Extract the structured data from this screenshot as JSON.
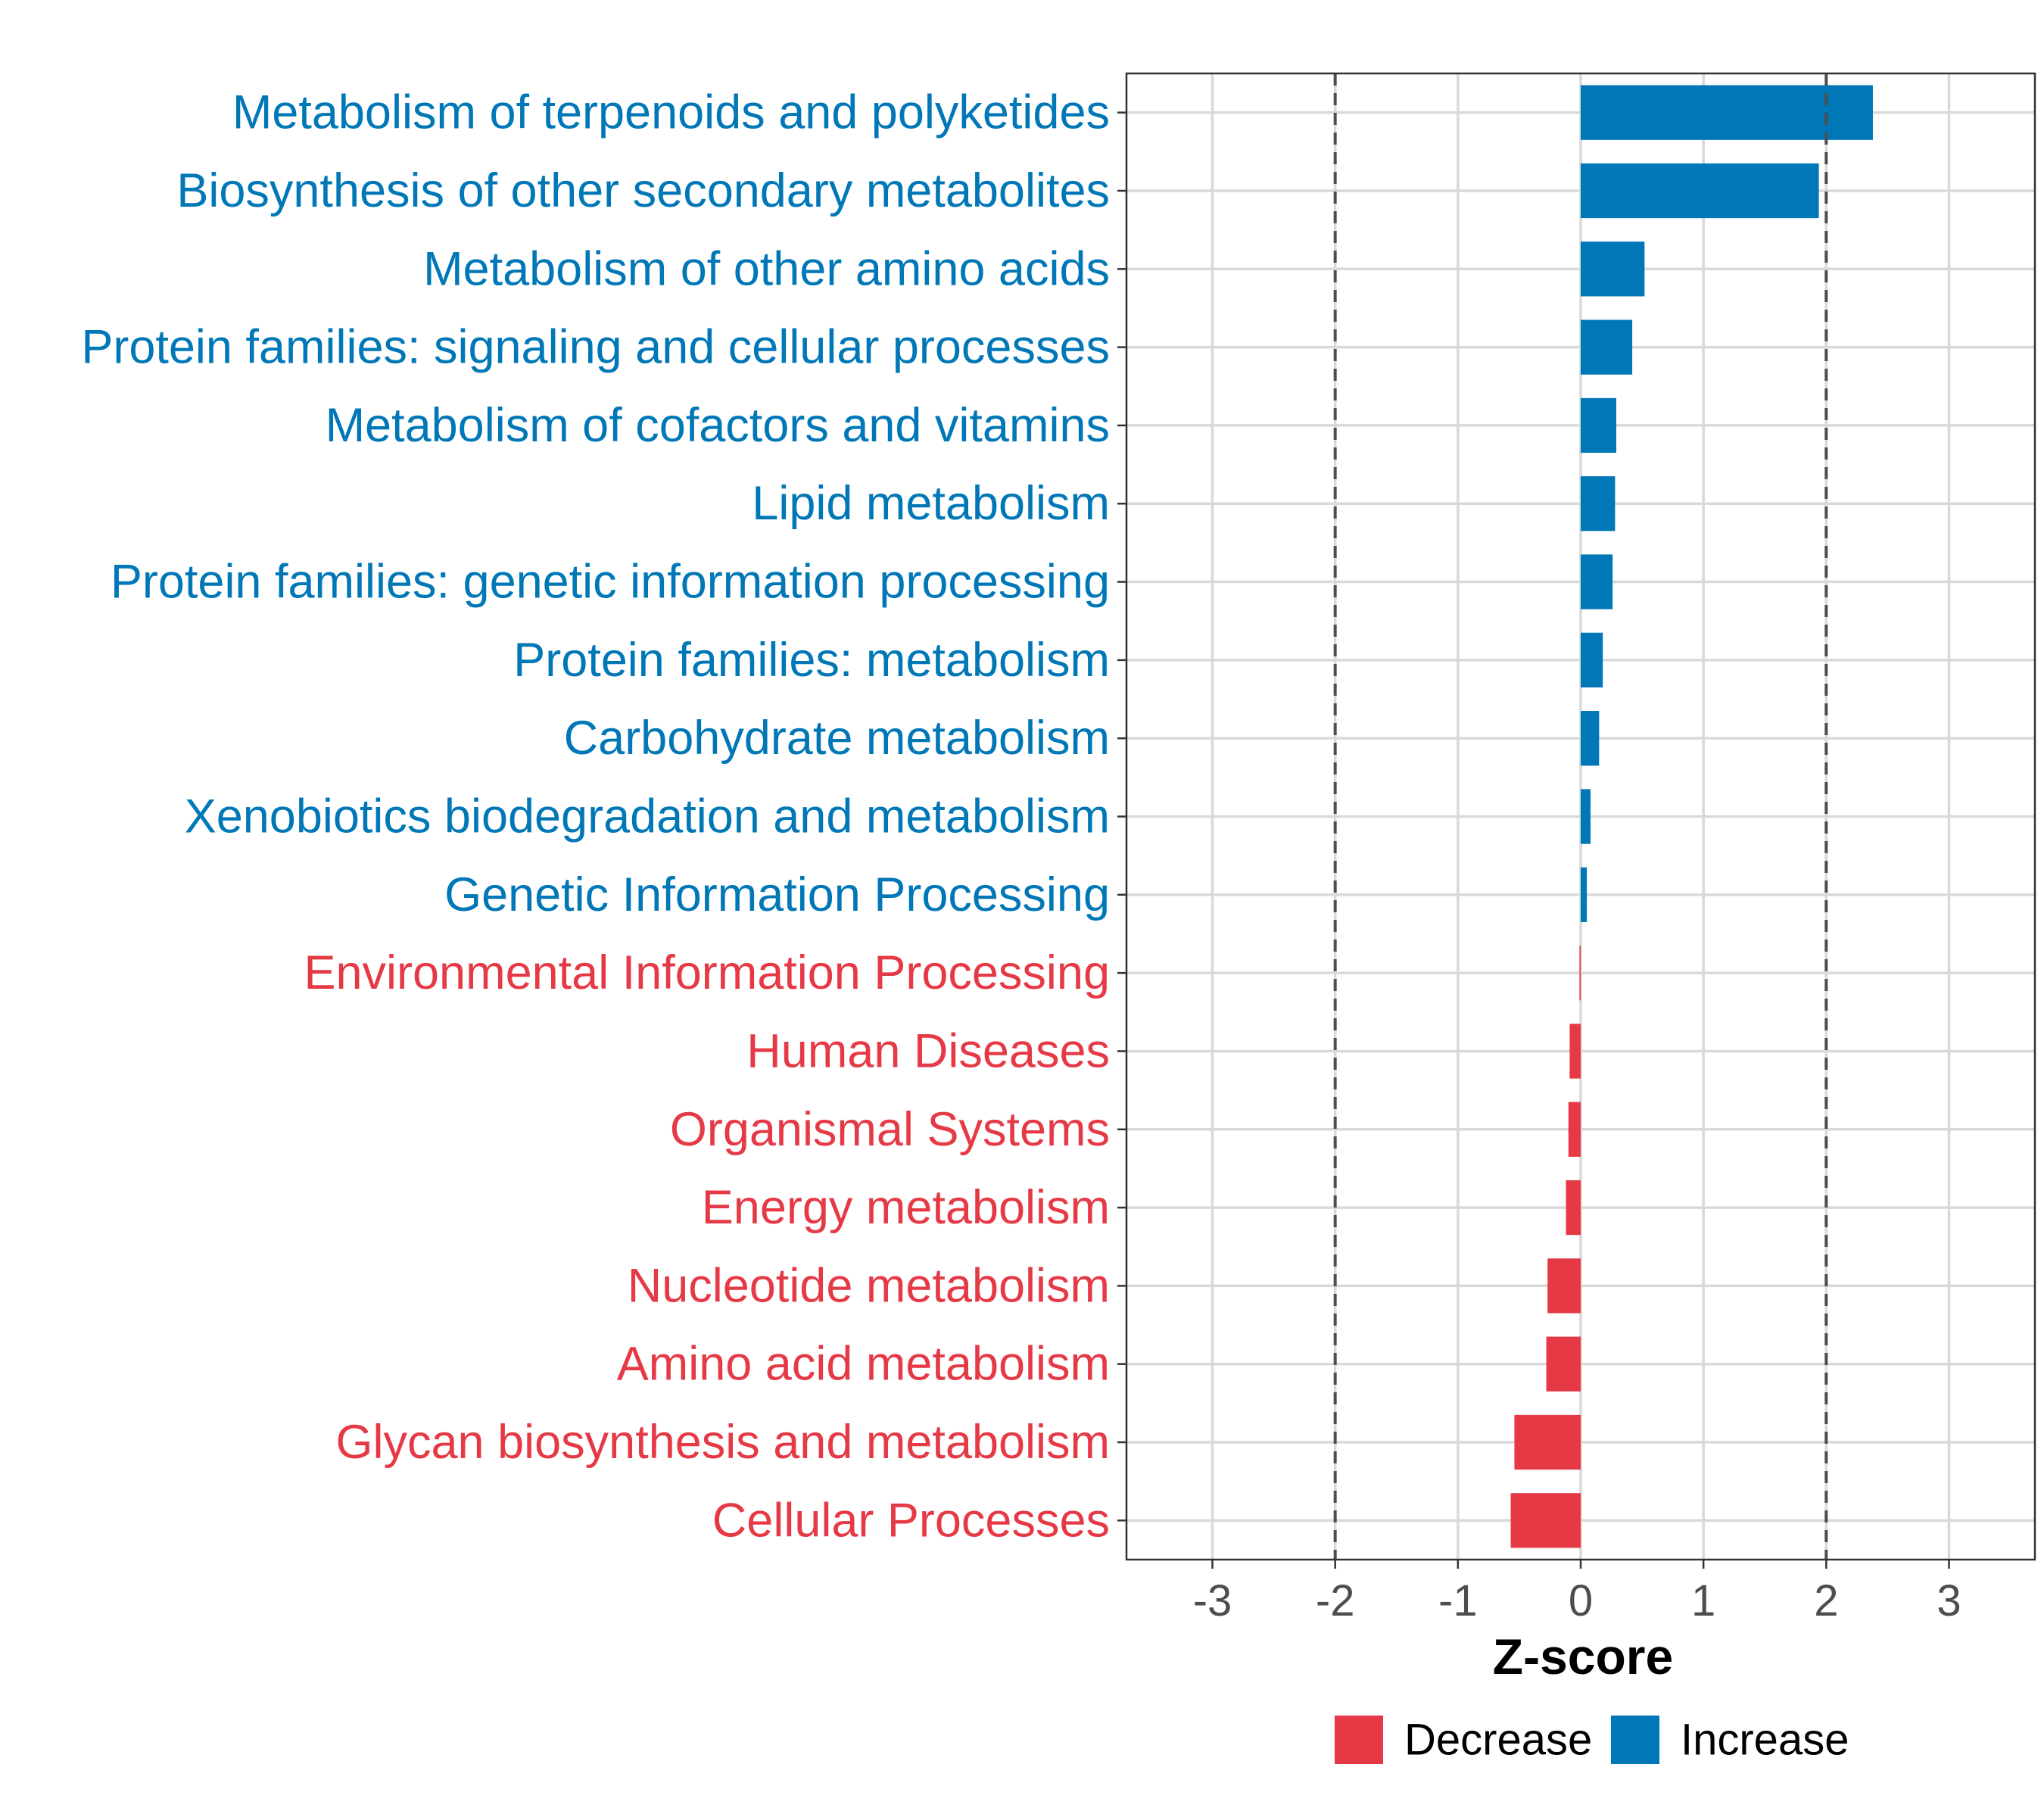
{
  "chart_data": {
    "type": "bar",
    "orientation": "horizontal",
    "categories": [
      "Metabolism of terpenoids and polyketides",
      "Biosynthesis of other secondary metabolites",
      "Metabolism of other amino acids",
      "Protein families: signaling and cellular processes",
      "Metabolism of cofactors and vitamins",
      "Lipid metabolism",
      "Protein families: genetic information processing",
      "Protein families: metabolism",
      "Carbohydrate metabolism",
      "Xenobiotics biodegradation and metabolism",
      "Genetic Information Processing",
      "Environmental Information Processing",
      "Human Diseases",
      "Organismal Systems",
      "Energy metabolism",
      "Nucleotide metabolism",
      "Amino acid metabolism",
      "Glycan biosynthesis and metabolism",
      "Cellular Processes"
    ],
    "values": [
      2.38,
      1.94,
      0.52,
      0.42,
      0.29,
      0.28,
      0.26,
      0.18,
      0.15,
      0.08,
      0.05,
      -0.01,
      -0.09,
      -0.1,
      -0.12,
      -0.27,
      -0.28,
      -0.54,
      -0.57
    ],
    "groups": [
      "Increase",
      "Increase",
      "Increase",
      "Increase",
      "Increase",
      "Increase",
      "Increase",
      "Increase",
      "Increase",
      "Increase",
      "Increase",
      "Decrease",
      "Decrease",
      "Decrease",
      "Decrease",
      "Decrease",
      "Decrease",
      "Decrease",
      "Decrease"
    ],
    "title": "",
    "xlabel": "Z-score",
    "ylabel": "",
    "xlim": [
      -3.7,
      3.7
    ],
    "x_ticks": [
      -3,
      -2,
      -1,
      0,
      1,
      2,
      3
    ],
    "x_tick_labels": [
      "-3",
      "-2",
      "-1",
      "0",
      "1",
      "2",
      "3"
    ],
    "reference_lines": [
      -2,
      2
    ],
    "grid": true,
    "legend": {
      "position": "bottom",
      "entries": [
        {
          "label": "Decrease",
          "color": "#e63946"
        },
        {
          "label": "Increase",
          "color": "#0077b6"
        }
      ]
    },
    "colors": {
      "Decrease": "#e63946",
      "Increase": "#0077b6"
    }
  }
}
